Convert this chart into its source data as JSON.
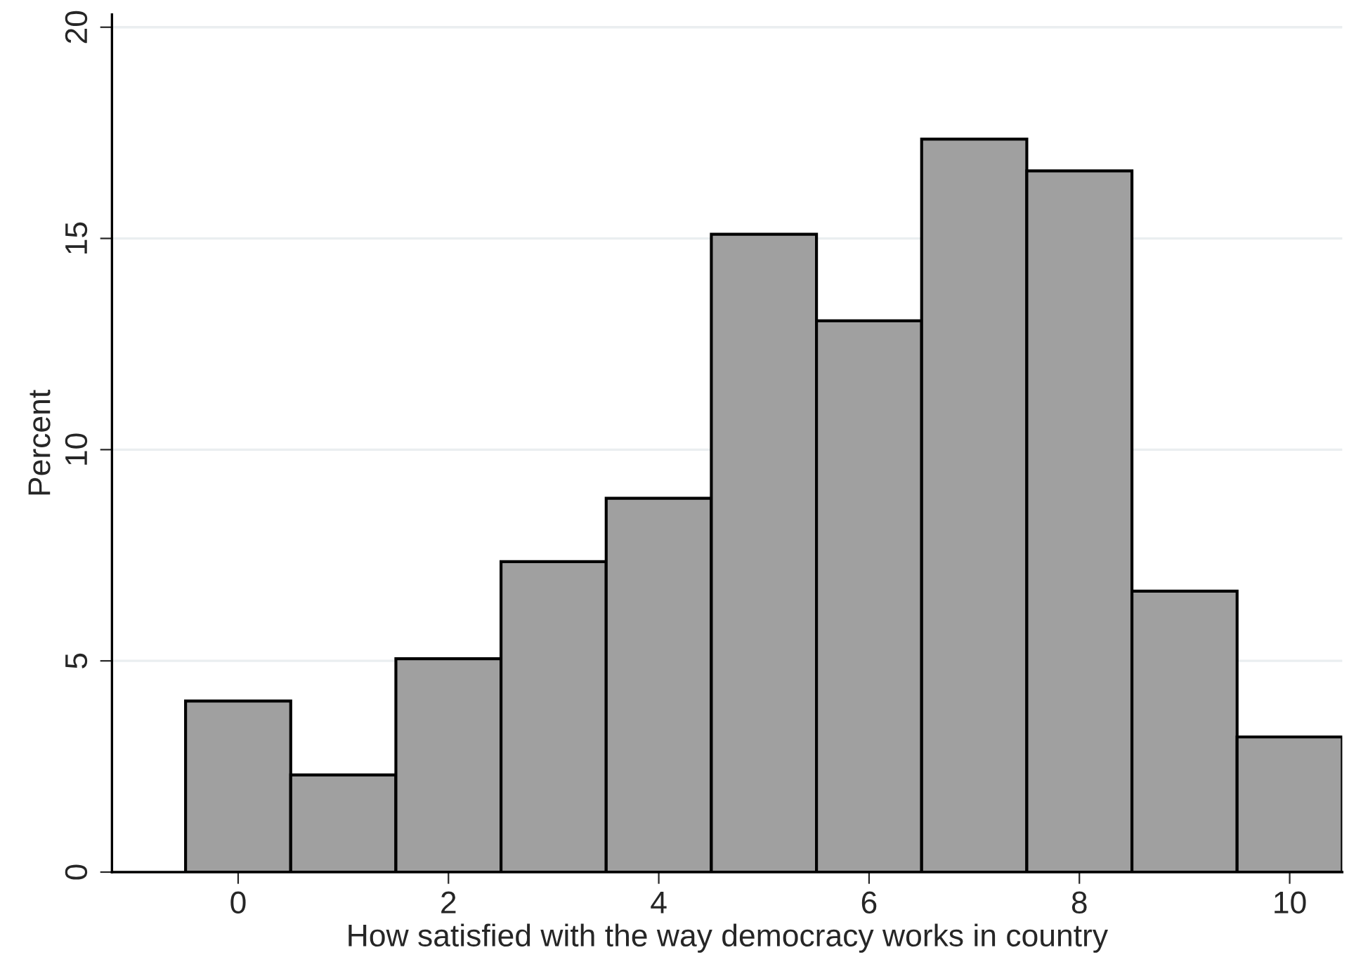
{
  "chart_data": {
    "type": "histogram",
    "xlabel": "How satisfied with the way democracy works in country",
    "ylabel": "Percent",
    "bins": [
      -0.5,
      0.5,
      1.5,
      2.5,
      3.5,
      4.5,
      5.5,
      6.5,
      7.5,
      8.5,
      9.5,
      10.5
    ],
    "values": [
      4.05,
      2.3,
      5.05,
      7.35,
      8.85,
      15.1,
      13.05,
      17.35,
      16.6,
      6.65,
      3.2
    ],
    "color": "#a0a0a0",
    "xlim": [
      -1.2,
      10.5
    ],
    "xticks": [
      0,
      2,
      4,
      6,
      8,
      10
    ],
    "ylim": [
      0,
      20.3
    ],
    "yticks": [
      0,
      5,
      10,
      15,
      20
    ],
    "grid": "y"
  }
}
